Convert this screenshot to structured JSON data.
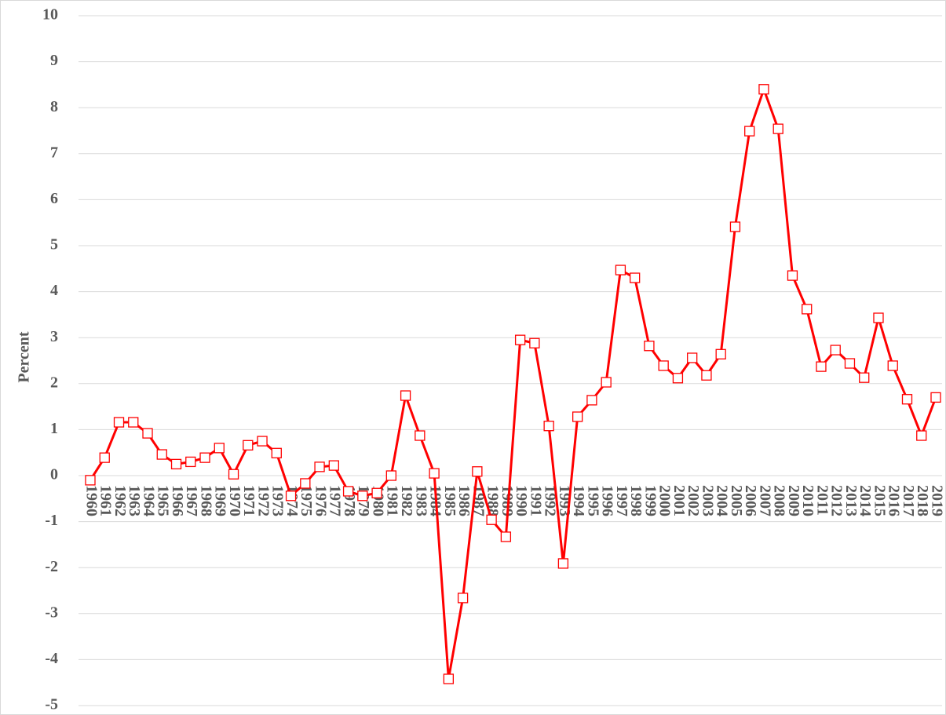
{
  "chart_data": {
    "type": "line",
    "ylabel": "Percent",
    "categories": [
      "1960",
      "1961",
      "1962",
      "1963",
      "1964",
      "1965",
      "1966",
      "1967",
      "1968",
      "1969",
      "1970",
      "1971",
      "1972",
      "1973",
      "1974",
      "1975",
      "1976",
      "1977",
      "1978",
      "1979",
      "1980",
      "1981",
      "1982",
      "1983",
      "1984",
      "1985",
      "1986",
      "1987",
      "1988",
      "1989",
      "1990",
      "1991",
      "1992",
      "1993",
      "1994",
      "1995",
      "1996",
      "1997",
      "1998",
      "1999",
      "2000",
      "2001",
      "2002",
      "2003",
      "2004",
      "2005",
      "2006",
      "2007",
      "2008",
      "2009",
      "2010",
      "2011",
      "2012",
      "2013",
      "2014",
      "2015",
      "2016",
      "2017",
      "2018",
      "2019"
    ],
    "values": [
      -0.1,
      0.39,
      1.16,
      1.16,
      0.92,
      0.46,
      0.25,
      0.3,
      0.39,
      0.6,
      0.03,
      0.66,
      0.75,
      0.49,
      -0.44,
      -0.17,
      0.19,
      0.22,
      -0.34,
      -0.44,
      -0.38,
      0,
      1.74,
      0.87,
      0.05,
      -4.42,
      -2.66,
      0.09,
      -0.96,
      -1.33,
      2.95,
      2.88,
      1.08,
      -1.91,
      1.28,
      1.64,
      2.03,
      4.47,
      4.3,
      2.82,
      2.39,
      2.12,
      2.56,
      2.18,
      2.64,
      5.41,
      7.49,
      8.4,
      7.54,
      4.35,
      3.62,
      2.37,
      2.73,
      2.44,
      2.13,
      3.43,
      2.39,
      1.66,
      0.87,
      1.7
    ],
    "color": "#ff0000",
    "ylim": [
      -5,
      10
    ],
    "yticks": [
      -5,
      -4,
      -3,
      -2,
      -1,
      0,
      1,
      2,
      3,
      4,
      5,
      6,
      7,
      8,
      9,
      10
    ],
    "grid": true
  }
}
